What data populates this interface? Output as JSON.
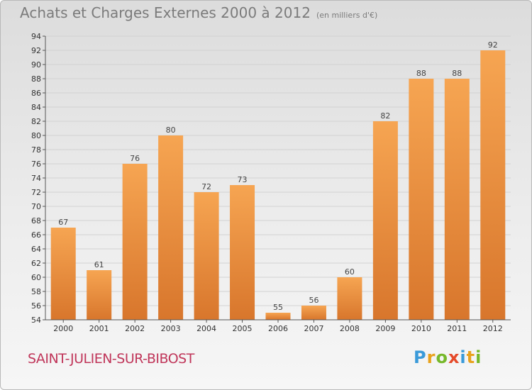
{
  "header": {
    "title": "Achats et Charges Externes 2000 à 2012",
    "unit": "(en milliers d'€)"
  },
  "commune": "SAINT-JULIEN-SUR-BIBOST",
  "brand": {
    "logo_text": "Proxiti"
  },
  "colors": {
    "bar_light": "#f6a552",
    "bar_dark": "#d8762c",
    "title": "#7b7b7b",
    "commune": "#c0365a"
  },
  "chart_data": {
    "type": "bar",
    "title": "Achats et Charges Externes 2000 à 2012",
    "subtitle": "(en milliers d'€)",
    "categories": [
      "2000",
      "2001",
      "2002",
      "2003",
      "2004",
      "2005",
      "2006",
      "2007",
      "2008",
      "2009",
      "2010",
      "2011",
      "2012"
    ],
    "values": [
      67,
      61,
      76,
      80,
      72,
      73,
      55,
      56,
      60,
      82,
      88,
      88,
      92
    ],
    "ylim": [
      54,
      94
    ],
    "yticks": [
      54,
      56,
      58,
      60,
      62,
      64,
      66,
      68,
      70,
      72,
      74,
      76,
      78,
      80,
      82,
      84,
      86,
      88,
      90,
      92,
      94
    ],
    "grid": true,
    "xlabel": "",
    "ylabel": ""
  }
}
